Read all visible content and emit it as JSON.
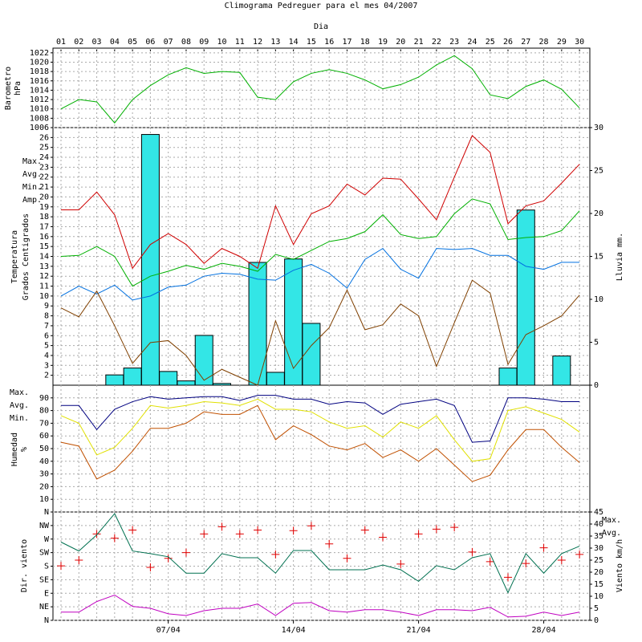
{
  "title": "Climograma Pedreguer para el mes 04/2007",
  "x_label": "Dia",
  "days": [
    "01",
    "02",
    "03",
    "04",
    "05",
    "06",
    "07",
    "08",
    "09",
    "10",
    "11",
    "12",
    "13",
    "14",
    "15",
    "16",
    "17",
    "18",
    "19",
    "20",
    "21",
    "22",
    "23",
    "24",
    "25",
    "26",
    "27",
    "28",
    "29",
    "30"
  ],
  "chart_data": [
    {
      "type": "line",
      "ylabel": [
        "Barometro",
        "hPa"
      ],
      "ylabel_color": "#00a000",
      "ylim": [
        1006,
        1023
      ],
      "yticks": [
        1006,
        1008,
        1010,
        1012,
        1014,
        1016,
        1018,
        1020,
        1022
      ],
      "grid": true,
      "series": [
        {
          "type": "line",
          "color": "#00b000",
          "values": [
            1010,
            1012,
            1011.5,
            1007,
            1012,
            1015,
            1017.3,
            1018.8,
            1017.6,
            1018,
            1017.8,
            1012.5,
            1012,
            1015.8,
            1017.6,
            1018.4,
            1017.6,
            1016.2,
            1014.3,
            1015.2,
            1016.8,
            1019.4,
            1021.4,
            1018.6,
            1013,
            1012.2,
            1014.8,
            1016.2,
            1014.2,
            1010.2
          ]
        }
      ]
    },
    {
      "type": "bar_line",
      "ylabel": [
        "Temperatura",
        "Grados Centigrados"
      ],
      "ylabel_color": "#d00000",
      "y2label": "Lluvia mm.",
      "y2label_color": "#00c8d0",
      "legend": "left",
      "ylim": [
        1,
        27
      ],
      "yticks": [
        2,
        3,
        4,
        5,
        6,
        7,
        8,
        9,
        10,
        11,
        12,
        13,
        14,
        15,
        16,
        17,
        18,
        19,
        20,
        21,
        22,
        23,
        24,
        25,
        26
      ],
      "y2lim": [
        0,
        30
      ],
      "y2ticks": [
        0,
        5,
        10,
        15,
        20,
        25,
        30
      ],
      "grid": true,
      "series": [
        {
          "type": "bar",
          "axis": "y2",
          "color": "#33e6e6",
          "values": [
            0,
            0,
            0,
            1.2,
            2,
            29.2,
            1.6,
            0.5,
            5.8,
            0.2,
            0,
            14.3,
            1.5,
            14.7,
            7.2,
            0,
            0,
            0,
            0,
            0,
            0,
            0,
            0,
            0,
            0,
            2,
            20.4,
            0,
            3.4,
            0
          ]
        },
        {
          "type": "line",
          "name": "Max.",
          "color": "#d00000",
          "values": [
            18.7,
            18.7,
            20.5,
            18.2,
            12.8,
            15.2,
            16.3,
            15.2,
            13.3,
            14.8,
            14,
            12.8,
            19.1,
            15.2,
            18.3,
            19.1,
            21.3,
            20.2,
            21.9,
            21.8,
            19.8,
            17.7,
            22,
            26.2,
            24.5,
            17.3,
            19.1,
            19.6,
            21.4,
            23.3
          ]
        },
        {
          "type": "line",
          "name": "Avg.",
          "color": "#00b000",
          "values": [
            14,
            14.1,
            15,
            14,
            11,
            12,
            12.5,
            13.1,
            12.7,
            13.3,
            13,
            12.5,
            14.2,
            13.7,
            14.6,
            15.5,
            15.8,
            16.5,
            18.2,
            16.2,
            15.8,
            16,
            18.3,
            19.8,
            19.3,
            15.7,
            15.9,
            16,
            16.6,
            18.6
          ]
        },
        {
          "type": "line",
          "name": "Min.",
          "color": "#0070e0",
          "values": [
            10,
            11,
            10.2,
            11.1,
            9.6,
            10,
            10.9,
            11.1,
            12,
            12.3,
            12.2,
            11.7,
            11.6,
            12.6,
            13.2,
            12.3,
            10.8,
            13.7,
            14.8,
            12.7,
            11.8,
            14.8,
            14.7,
            14.8,
            14.1,
            14.1,
            13,
            12.7,
            13.4,
            13.4
          ]
        },
        {
          "type": "line",
          "name": "Amp.",
          "color": "#804000",
          "values": [
            8.8,
            7.9,
            10.5,
            7,
            3.2,
            5.3,
            5.5,
            4,
            1.5,
            2.6,
            1.8,
            1,
            7.5,
            2.7,
            5,
            6.8,
            10.6,
            6.6,
            7.1,
            9.2,
            8,
            2.9,
            7.3,
            11.6,
            10.3,
            3.1,
            6.1,
            7,
            8,
            10.1
          ]
        }
      ]
    },
    {
      "type": "line",
      "ylabel": [
        "Humedad",
        "%"
      ],
      "ylabel_color": "#c05000",
      "legend": "left",
      "ylim": [
        0,
        100
      ],
      "yticks": [
        10,
        20,
        30,
        40,
        50,
        60,
        70,
        80,
        90
      ],
      "grid": true,
      "series": [
        {
          "type": "line",
          "name": "Max.",
          "color": "#000080",
          "values": [
            84,
            84,
            65,
            81,
            87,
            91,
            89,
            90,
            91,
            91,
            88,
            92,
            92,
            89,
            89,
            85,
            87,
            86,
            77,
            85,
            87,
            89,
            84,
            55,
            56,
            90,
            90,
            89,
            87,
            87
          ]
        },
        {
          "type": "line",
          "name": "Avg.",
          "color": "#e0e000",
          "values": [
            76,
            70,
            45,
            51,
            66,
            84,
            82,
            84,
            87,
            86,
            84,
            89,
            81,
            81,
            79,
            71,
            66,
            68,
            59,
            71,
            66,
            76,
            57,
            40,
            42,
            80,
            83,
            78,
            73,
            63
          ]
        },
        {
          "type": "line",
          "name": "Min.",
          "color": "#c05000",
          "values": [
            55,
            52,
            26,
            33,
            48,
            66,
            66,
            70,
            79,
            77,
            77,
            84,
            57,
            68,
            61,
            52,
            49,
            54,
            43,
            49,
            40,
            50,
            37,
            24,
            29,
            49,
            65,
            65,
            51,
            39
          ]
        }
      ]
    },
    {
      "type": "marker_line",
      "ylabel": [
        "Dir. viento"
      ],
      "ylabel_color": "#d00000",
      "y2label": "Viento km/h",
      "y2label_color": "#c000c0",
      "legend": "right",
      "categories": [
        null,
        null,
        null,
        null,
        null,
        null,
        "07/04",
        null,
        null,
        null,
        null,
        null,
        null,
        "14/04",
        null,
        null,
        null,
        null,
        null,
        null,
        "21/04",
        null,
        null,
        null,
        null,
        null,
        null,
        "28/04",
        null,
        null
      ],
      "ylim": [
        0,
        360
      ],
      "yticks": [
        {
          "value": 0,
          "label": "N"
        },
        {
          "value": 45,
          "label": "NE"
        },
        {
          "value": 90,
          "label": "E"
        },
        {
          "value": 135,
          "label": "SE"
        },
        {
          "value": 180,
          "label": "S"
        },
        {
          "value": 225,
          "label": "SW"
        },
        {
          "value": 270,
          "label": "W"
        },
        {
          "value": 315,
          "label": "NW"
        },
        {
          "value": 360,
          "label": "N"
        }
      ],
      "y2lim": [
        0,
        45
      ],
      "y2ticks": [
        0,
        5,
        10,
        15,
        20,
        25,
        30,
        35,
        40,
        45
      ],
      "grid": true,
      "series": [
        {
          "type": "marker",
          "color": "#e00000",
          "values": [
            181,
            200,
            287,
            273,
            300,
            176,
            206,
            225,
            287,
            311,
            287,
            300,
            219,
            298,
            314,
            254,
            206,
            300,
            276,
            187,
            287,
            303,
            309,
            227,
            195,
            143,
            189,
            241,
            200,
            219
          ]
        },
        {
          "type": "line",
          "axis": "y2",
          "name": "Max.",
          "color": "#007050",
          "values": [
            32.5,
            28.8,
            35.5,
            44.3,
            28.8,
            27.7,
            26.4,
            19.6,
            19.6,
            27.7,
            26,
            26,
            19.6,
            29,
            29,
            21,
            21,
            21,
            23,
            21,
            16.2,
            22.7,
            21,
            26,
            27.7,
            11.5,
            27.7,
            19.6,
            27.7,
            30.8
          ]
        },
        {
          "type": "line",
          "axis": "y2",
          "name": "Avg.",
          "color": "#c000c0",
          "values": [
            3.4,
            3.4,
            7.8,
            10.5,
            5.8,
            5,
            2.7,
            2,
            4,
            5,
            5,
            6.8,
            2,
            7.1,
            7.4,
            4,
            3.4,
            4.4,
            4.4,
            3.4,
            2,
            4.4,
            4.4,
            4,
            5.4,
            1.4,
            1.7,
            3.4,
            2,
            3.4
          ]
        }
      ]
    }
  ]
}
